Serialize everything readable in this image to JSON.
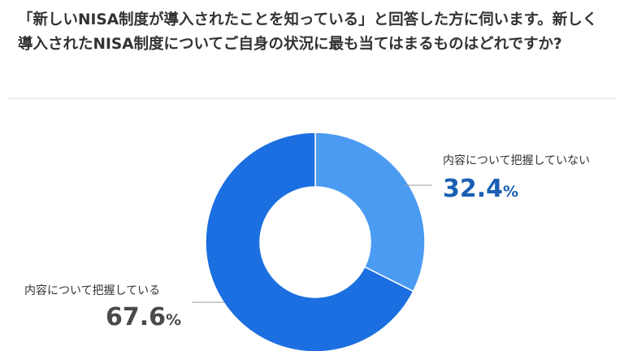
{
  "chart_data": {
    "type": "pie",
    "title": "「新しいNISA制度が導入されたことを知っている」と回答した方に伺います。新しく導入されたNISA制度についてご自身の状況に最も当てはまるものはどれですか?",
    "categories": [
      "内容について把握していない",
      "内容について把握している"
    ],
    "values": [
      32.4,
      67.6
    ],
    "value_labels": [
      "32.4%",
      "67.6%"
    ],
    "colors": [
      "#4c9bf2",
      "#1b6fe0"
    ]
  }
}
